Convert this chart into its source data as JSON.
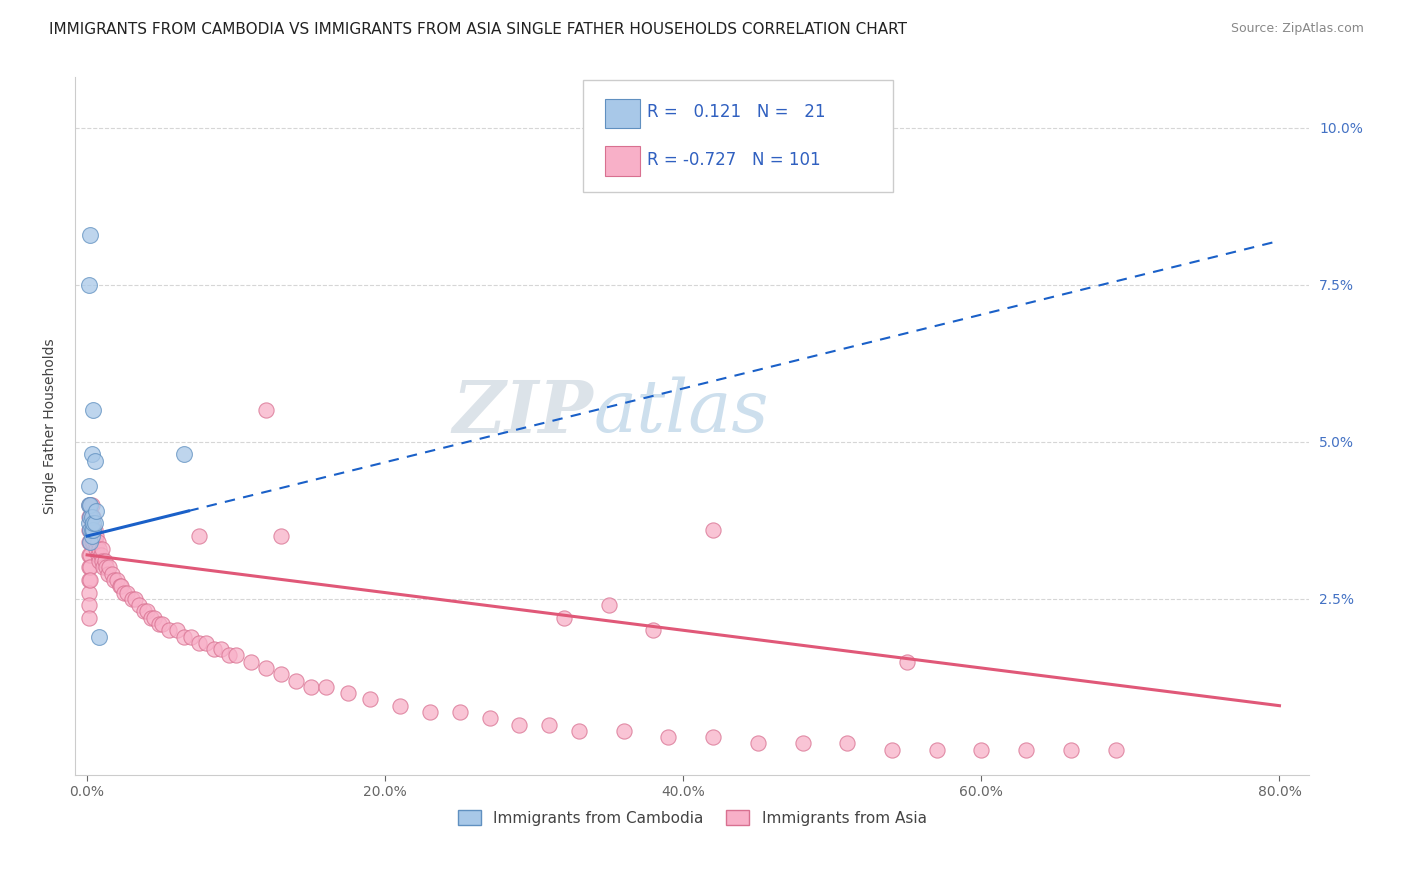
{
  "title": "IMMIGRANTS FROM CAMBODIA VS IMMIGRANTS FROM ASIA SINGLE FATHER HOUSEHOLDS CORRELATION CHART",
  "source": "Source: ZipAtlas.com",
  "ylabel": "Single Father Households",
  "xlim": [
    0.0,
    0.8
  ],
  "ylim": [
    0.0,
    0.105
  ],
  "x_ticks": [
    0.0,
    0.2,
    0.4,
    0.6,
    0.8
  ],
  "y_ticks": [
    0.025,
    0.05,
    0.075,
    0.1
  ],
  "legend_entries": [
    {
      "label": "Immigrants from Cambodia",
      "color": "#a8c8e8",
      "edge_color": "#6090c0",
      "R": "0.121",
      "N": "21"
    },
    {
      "label": "Immigrants from Asia",
      "color": "#f8b0c8",
      "edge_color": "#d87090",
      "R": "-0.727",
      "N": "101"
    }
  ],
  "cambodia_x": [
    0.001,
    0.001,
    0.001,
    0.001,
    0.002,
    0.002,
    0.002,
    0.002,
    0.002,
    0.003,
    0.003,
    0.003,
    0.003,
    0.004,
    0.004,
    0.004,
    0.005,
    0.005,
    0.006,
    0.008,
    0.065
  ],
  "cambodia_y": [
    0.037,
    0.04,
    0.043,
    0.075,
    0.034,
    0.036,
    0.038,
    0.04,
    0.083,
    0.035,
    0.036,
    0.038,
    0.048,
    0.036,
    0.037,
    0.055,
    0.037,
    0.047,
    0.039,
    0.019,
    0.048
  ],
  "asia_x": [
    0.001,
    0.001,
    0.001,
    0.001,
    0.001,
    0.001,
    0.001,
    0.001,
    0.001,
    0.001,
    0.002,
    0.002,
    0.002,
    0.002,
    0.002,
    0.002,
    0.002,
    0.003,
    0.003,
    0.003,
    0.003,
    0.004,
    0.004,
    0.004,
    0.005,
    0.005,
    0.006,
    0.006,
    0.007,
    0.007,
    0.008,
    0.008,
    0.009,
    0.01,
    0.01,
    0.011,
    0.012,
    0.013,
    0.014,
    0.015,
    0.017,
    0.018,
    0.02,
    0.022,
    0.023,
    0.025,
    0.027,
    0.03,
    0.032,
    0.035,
    0.038,
    0.04,
    0.043,
    0.045,
    0.048,
    0.05,
    0.055,
    0.06,
    0.065,
    0.07,
    0.075,
    0.08,
    0.085,
    0.09,
    0.095,
    0.1,
    0.11,
    0.12,
    0.13,
    0.14,
    0.15,
    0.16,
    0.175,
    0.19,
    0.21,
    0.23,
    0.25,
    0.27,
    0.29,
    0.31,
    0.33,
    0.36,
    0.39,
    0.42,
    0.45,
    0.48,
    0.51,
    0.54,
    0.57,
    0.6,
    0.63,
    0.66,
    0.69,
    0.13,
    0.32,
    0.35,
    0.38,
    0.55,
    0.42,
    0.12,
    0.075
  ],
  "asia_y": [
    0.04,
    0.038,
    0.036,
    0.034,
    0.032,
    0.03,
    0.028,
    0.026,
    0.024,
    0.022,
    0.04,
    0.038,
    0.036,
    0.034,
    0.032,
    0.03,
    0.028,
    0.04,
    0.038,
    0.036,
    0.034,
    0.038,
    0.036,
    0.034,
    0.036,
    0.034,
    0.035,
    0.033,
    0.034,
    0.032,
    0.033,
    0.031,
    0.032,
    0.033,
    0.031,
    0.03,
    0.031,
    0.03,
    0.029,
    0.03,
    0.029,
    0.028,
    0.028,
    0.027,
    0.027,
    0.026,
    0.026,
    0.025,
    0.025,
    0.024,
    0.023,
    0.023,
    0.022,
    0.022,
    0.021,
    0.021,
    0.02,
    0.02,
    0.019,
    0.019,
    0.018,
    0.018,
    0.017,
    0.017,
    0.016,
    0.016,
    0.015,
    0.014,
    0.013,
    0.012,
    0.011,
    0.011,
    0.01,
    0.009,
    0.008,
    0.007,
    0.007,
    0.006,
    0.005,
    0.005,
    0.004,
    0.004,
    0.003,
    0.003,
    0.002,
    0.002,
    0.002,
    0.001,
    0.001,
    0.001,
    0.001,
    0.001,
    0.001,
    0.035,
    0.022,
    0.024,
    0.02,
    0.015,
    0.036,
    0.055,
    0.035
  ],
  "background_color": "#ffffff",
  "grid_color": "#cccccc",
  "title_fontsize": 11,
  "axis_label_fontsize": 10,
  "tick_fontsize": 10,
  "trendline_cambodia_color": "#1a60c8",
  "trendline_asia_color": "#e05878",
  "trendline_cambodia_start_y": 0.035,
  "trendline_cambodia_end_y": 0.082,
  "trendline_cambodia_start_x": 0.0,
  "trendline_cambodia_end_x": 0.8,
  "trendline_asia_start_y": 0.032,
  "trendline_asia_end_y": 0.008,
  "trendline_asia_start_x": 0.0,
  "trendline_asia_end_x": 0.8,
  "watermark_zip_color": "#c0ccd8",
  "watermark_atlas_color": "#90b8d8"
}
